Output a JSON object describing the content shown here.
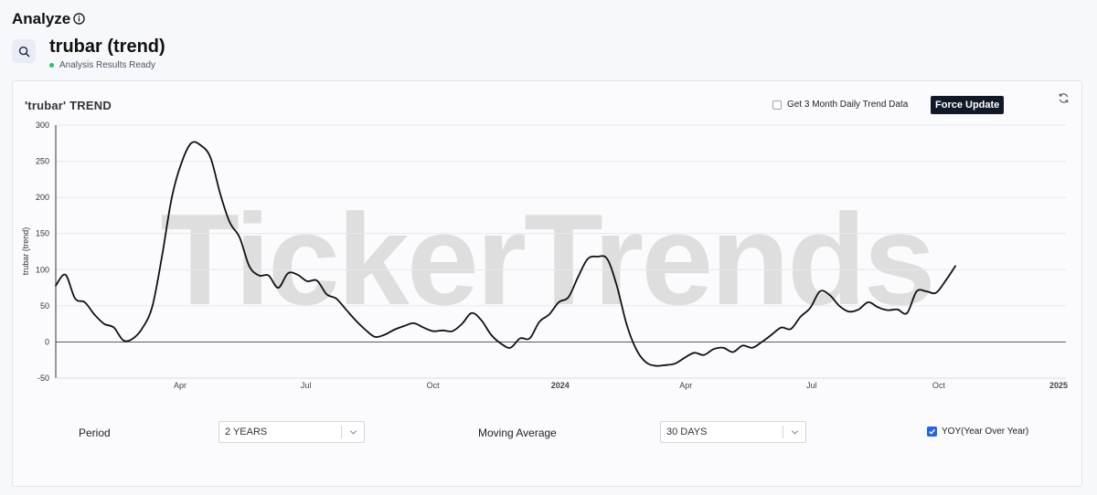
{
  "header": {
    "title": "Analyze",
    "ticker_title": "trubar (trend)",
    "status": "Analysis Results Ready"
  },
  "controls": {
    "daily_label": "Get 3 Month Daily Trend Data",
    "daily_checked": false,
    "force_update": "Force Update",
    "period_label": "Period",
    "period_value": "2 YEARS",
    "ma_label": "Moving Average",
    "ma_value": "30 DAYS",
    "yoy_label": "YOY(Year Over Year)",
    "yoy_checked": true
  },
  "watermark": "TickerTrends",
  "colors": {
    "line": "#111111",
    "accent": "#2563eb",
    "status": "#22c55e",
    "button": "#111827"
  },
  "chart_data": {
    "type": "line",
    "title": "'trubar' TREND",
    "ylabel": "trubar  (trend)",
    "xlabel": "",
    "ylim": [
      -50,
      300
    ],
    "yticks": [
      300,
      250,
      200,
      150,
      100,
      50,
      0,
      -50
    ],
    "xlim": [
      "2023-01-01",
      "2025-01-01"
    ],
    "xticks": [
      {
        "date": "2023-04-01",
        "label": "Apr",
        "bold": false
      },
      {
        "date": "2023-07-01",
        "label": "Jul",
        "bold": false
      },
      {
        "date": "2023-10-01",
        "label": "Oct",
        "bold": false
      },
      {
        "date": "2024-01-01",
        "label": "2024",
        "bold": true
      },
      {
        "date": "2024-04-01",
        "label": "Apr",
        "bold": false
      },
      {
        "date": "2024-07-01",
        "label": "Jul",
        "bold": false
      },
      {
        "date": "2024-10-01",
        "label": "Oct",
        "bold": false
      },
      {
        "date": "2025-01-01",
        "label": "2025",
        "bold": true
      }
    ],
    "grid": true,
    "series": [
      {
        "values": [
          {
            "x": "2023-01-01",
            "y": 78
          },
          {
            "x": "2023-01-08",
            "y": 93
          },
          {
            "x": "2023-01-15",
            "y": 60
          },
          {
            "x": "2023-01-22",
            "y": 55
          },
          {
            "x": "2023-01-29",
            "y": 38
          },
          {
            "x": "2023-02-05",
            "y": 25
          },
          {
            "x": "2023-02-12",
            "y": 20
          },
          {
            "x": "2023-02-19",
            "y": 2
          },
          {
            "x": "2023-02-26",
            "y": 5
          },
          {
            "x": "2023-03-05",
            "y": 20
          },
          {
            "x": "2023-03-12",
            "y": 50
          },
          {
            "x": "2023-03-19",
            "y": 120
          },
          {
            "x": "2023-03-26",
            "y": 200
          },
          {
            "x": "2023-04-02",
            "y": 248
          },
          {
            "x": "2023-04-09",
            "y": 275
          },
          {
            "x": "2023-04-16",
            "y": 272
          },
          {
            "x": "2023-04-23",
            "y": 255
          },
          {
            "x": "2023-04-30",
            "y": 205
          },
          {
            "x": "2023-05-07",
            "y": 165
          },
          {
            "x": "2023-05-14",
            "y": 145
          },
          {
            "x": "2023-05-21",
            "y": 105
          },
          {
            "x": "2023-05-28",
            "y": 92
          },
          {
            "x": "2023-06-04",
            "y": 92
          },
          {
            "x": "2023-06-11",
            "y": 75
          },
          {
            "x": "2023-06-18",
            "y": 95
          },
          {
            "x": "2023-06-25",
            "y": 93
          },
          {
            "x": "2023-07-02",
            "y": 84
          },
          {
            "x": "2023-07-09",
            "y": 85
          },
          {
            "x": "2023-07-16",
            "y": 66
          },
          {
            "x": "2023-07-23",
            "y": 60
          },
          {
            "x": "2023-07-30",
            "y": 45
          },
          {
            "x": "2023-08-06",
            "y": 30
          },
          {
            "x": "2023-08-13",
            "y": 17
          },
          {
            "x": "2023-08-20",
            "y": 7
          },
          {
            "x": "2023-08-27",
            "y": 10
          },
          {
            "x": "2023-09-03",
            "y": 17
          },
          {
            "x": "2023-09-10",
            "y": 22
          },
          {
            "x": "2023-09-17",
            "y": 26
          },
          {
            "x": "2023-09-24",
            "y": 20
          },
          {
            "x": "2023-10-01",
            "y": 15
          },
          {
            "x": "2023-10-08",
            "y": 16
          },
          {
            "x": "2023-10-15",
            "y": 15
          },
          {
            "x": "2023-10-22",
            "y": 25
          },
          {
            "x": "2023-10-29",
            "y": 40
          },
          {
            "x": "2023-11-05",
            "y": 30
          },
          {
            "x": "2023-11-12",
            "y": 10
          },
          {
            "x": "2023-11-19",
            "y": -2
          },
          {
            "x": "2023-11-26",
            "y": -8
          },
          {
            "x": "2023-12-03",
            "y": 5
          },
          {
            "x": "2023-12-10",
            "y": 5
          },
          {
            "x": "2023-12-17",
            "y": 28
          },
          {
            "x": "2023-12-24",
            "y": 38
          },
          {
            "x": "2023-12-31",
            "y": 55
          },
          {
            "x": "2024-01-07",
            "y": 62
          },
          {
            "x": "2024-01-14",
            "y": 90
          },
          {
            "x": "2024-01-21",
            "y": 115
          },
          {
            "x": "2024-01-28",
            "y": 118
          },
          {
            "x": "2024-02-04",
            "y": 115
          },
          {
            "x": "2024-02-11",
            "y": 78
          },
          {
            "x": "2024-02-18",
            "y": 25
          },
          {
            "x": "2024-02-25",
            "y": -10
          },
          {
            "x": "2024-03-03",
            "y": -28
          },
          {
            "x": "2024-03-10",
            "y": -33
          },
          {
            "x": "2024-03-17",
            "y": -32
          },
          {
            "x": "2024-03-24",
            "y": -30
          },
          {
            "x": "2024-03-31",
            "y": -22
          },
          {
            "x": "2024-04-07",
            "y": -15
          },
          {
            "x": "2024-04-14",
            "y": -18
          },
          {
            "x": "2024-04-21",
            "y": -10
          },
          {
            "x": "2024-04-28",
            "y": -8
          },
          {
            "x": "2024-05-05",
            "y": -14
          },
          {
            "x": "2024-05-12",
            "y": -5
          },
          {
            "x": "2024-05-19",
            "y": -8
          },
          {
            "x": "2024-05-26",
            "y": 0
          },
          {
            "x": "2024-06-02",
            "y": 10
          },
          {
            "x": "2024-06-09",
            "y": 20
          },
          {
            "x": "2024-06-16",
            "y": 18
          },
          {
            "x": "2024-06-23",
            "y": 35
          },
          {
            "x": "2024-06-30",
            "y": 47
          },
          {
            "x": "2024-07-07",
            "y": 70
          },
          {
            "x": "2024-07-14",
            "y": 65
          },
          {
            "x": "2024-07-21",
            "y": 50
          },
          {
            "x": "2024-07-28",
            "y": 42
          },
          {
            "x": "2024-08-04",
            "y": 45
          },
          {
            "x": "2024-08-11",
            "y": 55
          },
          {
            "x": "2024-08-18",
            "y": 48
          },
          {
            "x": "2024-08-25",
            "y": 44
          },
          {
            "x": "2024-09-01",
            "y": 45
          },
          {
            "x": "2024-09-08",
            "y": 40
          },
          {
            "x": "2024-09-15",
            "y": 70
          },
          {
            "x": "2024-09-22",
            "y": 70
          },
          {
            "x": "2024-09-29",
            "y": 68
          },
          {
            "x": "2024-10-06",
            "y": 85
          },
          {
            "x": "2024-10-13",
            "y": 105
          }
        ]
      }
    ]
  }
}
